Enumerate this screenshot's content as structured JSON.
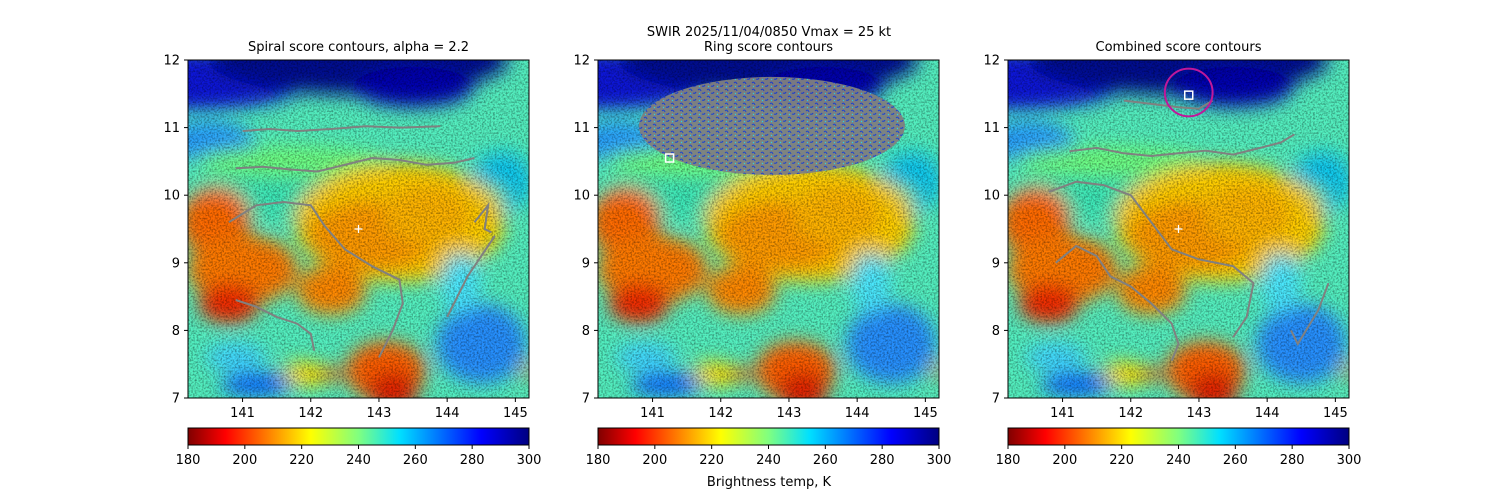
{
  "figure": {
    "suptitle_line1": "SWIR  2025/11/04/0850    Vmax = 25 kt",
    "colorbar_label": "Brightness temp, K"
  },
  "chart_data": [
    {
      "type": "heatmap",
      "title": "Spiral score contours, alpha =  2.2",
      "xlim": [
        140.2,
        145.2
      ],
      "ylim": [
        7,
        12
      ],
      "xticks": [
        141,
        142,
        143,
        144,
        145
      ],
      "yticks": [
        7,
        8,
        9,
        10,
        11,
        12
      ],
      "colorbar": {
        "range": [
          180,
          300
        ],
        "ticks": [
          180,
          200,
          220,
          240,
          260,
          280,
          300
        ],
        "colormap": "jet_r"
      },
      "center_marker": {
        "x": 142.7,
        "y": 9.5,
        "symbol": "+"
      },
      "contours": [
        [
          [
            141.0,
            10.95
          ],
          [
            141.4,
            10.98
          ],
          [
            141.8,
            10.95
          ],
          [
            142.3,
            10.98
          ],
          [
            142.8,
            11.02
          ],
          [
            143.3,
            11.0
          ],
          [
            143.9,
            11.02
          ]
        ],
        [
          [
            140.9,
            10.4
          ],
          [
            141.3,
            10.42
          ],
          [
            141.7,
            10.38
          ],
          [
            142.1,
            10.35
          ],
          [
            142.5,
            10.45
          ],
          [
            142.9,
            10.55
          ],
          [
            143.3,
            10.52
          ],
          [
            143.7,
            10.45
          ],
          [
            144.1,
            10.48
          ],
          [
            144.4,
            10.55
          ]
        ],
        [
          [
            140.8,
            9.6
          ],
          [
            141.2,
            9.85
          ],
          [
            141.6,
            9.9
          ],
          [
            142.0,
            9.85
          ],
          [
            142.2,
            9.55
          ],
          [
            142.5,
            9.2
          ],
          [
            142.9,
            8.95
          ],
          [
            143.3,
            8.75
          ],
          [
            143.35,
            8.4
          ],
          [
            143.2,
            8.0
          ],
          [
            143.0,
            7.6
          ]
        ],
        [
          [
            140.9,
            8.45
          ],
          [
            141.2,
            8.35
          ],
          [
            141.5,
            8.2
          ],
          [
            141.8,
            8.1
          ],
          [
            142.0,
            7.95
          ],
          [
            142.05,
            7.7
          ]
        ],
        [
          [
            144.7,
            9.4
          ],
          [
            144.5,
            9.1
          ],
          [
            144.3,
            8.8
          ],
          [
            144.15,
            8.5
          ],
          [
            144.0,
            8.2
          ]
        ],
        [
          [
            144.4,
            9.6
          ],
          [
            144.6,
            9.85
          ],
          [
            144.55,
            9.5
          ],
          [
            144.65,
            9.45
          ]
        ]
      ]
    },
    {
      "type": "heatmap",
      "title": "Ring score contours",
      "xlim": [
        140.2,
        145.2
      ],
      "ylim": [
        7,
        12
      ],
      "xticks": [
        141,
        142,
        143,
        144,
        145
      ],
      "yticks": [
        7,
        8,
        9,
        10,
        11,
        12
      ],
      "colorbar": {
        "range": [
          180,
          300
        ],
        "ticks": [
          180,
          200,
          220,
          240,
          260,
          280,
          300
        ],
        "colormap": "jet_r"
      },
      "ring_region": {
        "x": [
          140.8,
          144.7
        ],
        "y": [
          10.3,
          11.75
        ]
      },
      "square_marker": {
        "x": 141.25,
        "y": 10.55
      }
    },
    {
      "type": "heatmap",
      "title": "Combined score contours",
      "xlim": [
        140.2,
        145.2
      ],
      "ylim": [
        7,
        12
      ],
      "xticks": [
        141,
        142,
        143,
        144,
        145
      ],
      "yticks": [
        7,
        8,
        9,
        10,
        11,
        12
      ],
      "colorbar": {
        "range": [
          180,
          300
        ],
        "ticks": [
          180,
          200,
          220,
          240,
          260,
          280,
          300
        ],
        "colormap": "jet_r"
      },
      "center_marker": {
        "x": 142.7,
        "y": 9.5,
        "symbol": "+"
      },
      "square_marker": {
        "x": 142.85,
        "y": 11.48
      },
      "circle": {
        "x": 142.85,
        "y": 11.52,
        "r": 0.35,
        "color": "#c0189a"
      },
      "contours": [
        [
          [
            141.9,
            11.4
          ],
          [
            142.3,
            11.35
          ],
          [
            142.7,
            11.3
          ],
          [
            143.0,
            11.28
          ],
          [
            143.2,
            11.4
          ]
        ],
        [
          [
            141.1,
            10.65
          ],
          [
            141.5,
            10.7
          ],
          [
            141.9,
            10.62
          ],
          [
            142.3,
            10.58
          ],
          [
            142.7,
            10.62
          ],
          [
            143.1,
            10.66
          ],
          [
            143.5,
            10.6
          ],
          [
            143.9,
            10.7
          ],
          [
            144.2,
            10.78
          ],
          [
            144.4,
            10.9
          ]
        ],
        [
          [
            140.8,
            10.05
          ],
          [
            141.2,
            10.2
          ],
          [
            141.6,
            10.15
          ],
          [
            142.0,
            10.0
          ],
          [
            142.3,
            9.6
          ],
          [
            142.6,
            9.2
          ],
          [
            143.0,
            9.05
          ],
          [
            143.5,
            8.95
          ],
          [
            143.8,
            8.7
          ],
          [
            143.7,
            8.2
          ],
          [
            143.5,
            7.9
          ]
        ],
        [
          [
            140.9,
            9.0
          ],
          [
            141.2,
            9.25
          ],
          [
            141.5,
            9.1
          ],
          [
            141.7,
            8.8
          ],
          [
            142.0,
            8.65
          ],
          [
            142.3,
            8.4
          ],
          [
            142.6,
            8.1
          ],
          [
            142.7,
            7.8
          ],
          [
            142.6,
            7.55
          ]
        ],
        [
          [
            144.35,
            8.0
          ],
          [
            144.45,
            7.8
          ],
          [
            144.6,
            8.05
          ],
          [
            144.75,
            8.3
          ],
          [
            144.9,
            8.7
          ]
        ]
      ]
    }
  ]
}
